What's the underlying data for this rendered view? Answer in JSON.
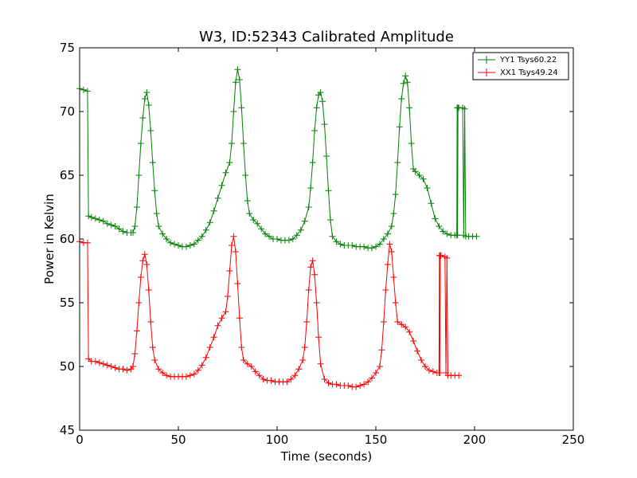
{
  "chart_data": {
    "type": "line",
    "title": "W3, ID:52343 Calibrated Amplitude",
    "xlabel": "Time (seconds)",
    "ylabel": "Power in Kelvin",
    "xlim": [
      0,
      250
    ],
    "ylim": [
      45,
      75
    ],
    "xticks": [
      0,
      50,
      100,
      150,
      200,
      250
    ],
    "yticks": [
      45,
      50,
      55,
      60,
      65,
      70,
      75
    ],
    "grid": false,
    "legend_position": "top-right",
    "marker": "+",
    "series": [
      {
        "name": "YY1 Tsys60.22",
        "color": "#008000",
        "points": [
          [
            0,
            71.8
          ],
          [
            2,
            71.7
          ],
          [
            4,
            71.6
          ],
          [
            4.5,
            61.8
          ],
          [
            6,
            61.7
          ],
          [
            8,
            61.6
          ],
          [
            10,
            61.5
          ],
          [
            12,
            61.4
          ],
          [
            14,
            61.2
          ],
          [
            16,
            61.1
          ],
          [
            18,
            61.0
          ],
          [
            20,
            60.8
          ],
          [
            22,
            60.6
          ],
          [
            24,
            60.5
          ],
          [
            26,
            60.5
          ],
          [
            27,
            60.5
          ],
          [
            28,
            61.0
          ],
          [
            29,
            62.5
          ],
          [
            30,
            65.0
          ],
          [
            31,
            67.5
          ],
          [
            32,
            69.5
          ],
          [
            33,
            71.0
          ],
          [
            34,
            71.5
          ],
          [
            35,
            70.5
          ],
          [
            36,
            68.5
          ],
          [
            37,
            66.0
          ],
          [
            38,
            63.8
          ],
          [
            39,
            62.0
          ],
          [
            40,
            61.0
          ],
          [
            42,
            60.4
          ],
          [
            44,
            60.0
          ],
          [
            46,
            59.7
          ],
          [
            48,
            59.6
          ],
          [
            50,
            59.5
          ],
          [
            52,
            59.4
          ],
          [
            54,
            59.4
          ],
          [
            56,
            59.5
          ],
          [
            58,
            59.6
          ],
          [
            60,
            59.9
          ],
          [
            62,
            60.2
          ],
          [
            64,
            60.7
          ],
          [
            66,
            61.3
          ],
          [
            68,
            62.2
          ],
          [
            70,
            63.2
          ],
          [
            72,
            64.2
          ],
          [
            74,
            65.2
          ],
          [
            76,
            66.0
          ],
          [
            77,
            67.5
          ],
          [
            78,
            70.0
          ],
          [
            79,
            72.3
          ],
          [
            80,
            73.3
          ],
          [
            81,
            72.5
          ],
          [
            82,
            70.3
          ],
          [
            83,
            67.5
          ],
          [
            84,
            65.0
          ],
          [
            85,
            63.0
          ],
          [
            86,
            62.0
          ],
          [
            88,
            61.5
          ],
          [
            90,
            61.2
          ],
          [
            92,
            60.8
          ],
          [
            94,
            60.4
          ],
          [
            96,
            60.2
          ],
          [
            98,
            60.0
          ],
          [
            100,
            60.0
          ],
          [
            102,
            59.9
          ],
          [
            104,
            59.9
          ],
          [
            106,
            59.9
          ],
          [
            108,
            60.0
          ],
          [
            110,
            60.3
          ],
          [
            112,
            60.7
          ],
          [
            114,
            61.4
          ],
          [
            116,
            62.5
          ],
          [
            117,
            64.0
          ],
          [
            118,
            66.0
          ],
          [
            119,
            68.5
          ],
          [
            120,
            70.3
          ],
          [
            121,
            71.3
          ],
          [
            122,
            71.5
          ],
          [
            123,
            70.8
          ],
          [
            124,
            69.0
          ],
          [
            125,
            66.5
          ],
          [
            126,
            63.8
          ],
          [
            127,
            61.5
          ],
          [
            128,
            60.2
          ],
          [
            130,
            59.8
          ],
          [
            132,
            59.6
          ],
          [
            134,
            59.5
          ],
          [
            136,
            59.5
          ],
          [
            138,
            59.5
          ],
          [
            140,
            59.4
          ],
          [
            142,
            59.4
          ],
          [
            144,
            59.4
          ],
          [
            146,
            59.3
          ],
          [
            148,
            59.3
          ],
          [
            150,
            59.4
          ],
          [
            152,
            59.6
          ],
          [
            154,
            60.0
          ],
          [
            156,
            60.4
          ],
          [
            158,
            61.0
          ],
          [
            159,
            62.0
          ],
          [
            160,
            63.5
          ],
          [
            161,
            66.0
          ],
          [
            162,
            68.8
          ],
          [
            163,
            71.0
          ],
          [
            164,
            72.2
          ],
          [
            165,
            72.8
          ],
          [
            166,
            72.3
          ],
          [
            167,
            70.3
          ],
          [
            168,
            67.5
          ],
          [
            169,
            65.5
          ],
          [
            170,
            65.3
          ],
          [
            172,
            65.0
          ],
          [
            174,
            64.7
          ],
          [
            176,
            64.0
          ],
          [
            178,
            62.8
          ],
          [
            180,
            61.6
          ],
          [
            182,
            61.0
          ],
          [
            184,
            60.6
          ],
          [
            186,
            60.4
          ],
          [
            188,
            60.3
          ],
          [
            190,
            60.3
          ],
          [
            191,
            60.3
          ],
          [
            191.2,
            70.3
          ],
          [
            191.4,
            60.3
          ],
          [
            191.6,
            70.3
          ],
          [
            192,
            70.3
          ],
          [
            194,
            70.3
          ],
          [
            194.5,
            60.3
          ],
          [
            195,
            70.2
          ],
          [
            195.5,
            60.2
          ],
          [
            197,
            60.2
          ],
          [
            199,
            60.2
          ],
          [
            201,
            60.2
          ]
        ]
      },
      {
        "name": "XX1 Tsys49.24",
        "color": "#ff0000",
        "points": [
          [
            0,
            59.8
          ],
          [
            2,
            59.7
          ],
          [
            4,
            59.7
          ],
          [
            4.5,
            50.6
          ],
          [
            6,
            50.4
          ],
          [
            8,
            50.4
          ],
          [
            10,
            50.3
          ],
          [
            12,
            50.2
          ],
          [
            14,
            50.1
          ],
          [
            16,
            50.0
          ],
          [
            18,
            49.9
          ],
          [
            20,
            49.8
          ],
          [
            22,
            49.8
          ],
          [
            24,
            49.7
          ],
          [
            26,
            49.8
          ],
          [
            27,
            50.0
          ],
          [
            28,
            51.0
          ],
          [
            29,
            52.8
          ],
          [
            30,
            55.0
          ],
          [
            31,
            57.0
          ],
          [
            32,
            58.3
          ],
          [
            33,
            58.8
          ],
          [
            34,
            58.0
          ],
          [
            35,
            56.0
          ],
          [
            36,
            53.5
          ],
          [
            37,
            51.5
          ],
          [
            38,
            50.5
          ],
          [
            40,
            49.8
          ],
          [
            42,
            49.5
          ],
          [
            44,
            49.3
          ],
          [
            46,
            49.2
          ],
          [
            48,
            49.2
          ],
          [
            50,
            49.2
          ],
          [
            52,
            49.2
          ],
          [
            54,
            49.2
          ],
          [
            56,
            49.3
          ],
          [
            58,
            49.4
          ],
          [
            60,
            49.7
          ],
          [
            62,
            50.1
          ],
          [
            64,
            50.7
          ],
          [
            66,
            51.5
          ],
          [
            68,
            52.3
          ],
          [
            70,
            53.2
          ],
          [
            72,
            53.8
          ],
          [
            74,
            54.3
          ],
          [
            75,
            55.5
          ],
          [
            76,
            57.5
          ],
          [
            77,
            59.5
          ],
          [
            78,
            60.2
          ],
          [
            79,
            59.0
          ],
          [
            80,
            56.5
          ],
          [
            81,
            53.8
          ],
          [
            82,
            51.5
          ],
          [
            83,
            50.5
          ],
          [
            85,
            50.2
          ],
          [
            87,
            50.0
          ],
          [
            89,
            49.6
          ],
          [
            91,
            49.3
          ],
          [
            93,
            49.0
          ],
          [
            95,
            48.9
          ],
          [
            97,
            48.9
          ],
          [
            99,
            48.8
          ],
          [
            101,
            48.8
          ],
          [
            103,
            48.8
          ],
          [
            105,
            48.8
          ],
          [
            107,
            49.0
          ],
          [
            109,
            49.3
          ],
          [
            111,
            49.8
          ],
          [
            113,
            50.5
          ],
          [
            114,
            51.5
          ],
          [
            115,
            53.5
          ],
          [
            116,
            56.0
          ],
          [
            117,
            57.8
          ],
          [
            118,
            58.3
          ],
          [
            119,
            57.2
          ],
          [
            120,
            55.0
          ],
          [
            121,
            52.3
          ],
          [
            122,
            50.2
          ],
          [
            124,
            49.0
          ],
          [
            126,
            48.7
          ],
          [
            128,
            48.6
          ],
          [
            130,
            48.6
          ],
          [
            132,
            48.5
          ],
          [
            134,
            48.5
          ],
          [
            136,
            48.5
          ],
          [
            138,
            48.4
          ],
          [
            140,
            48.4
          ],
          [
            142,
            48.5
          ],
          [
            144,
            48.6
          ],
          [
            146,
            48.8
          ],
          [
            148,
            49.1
          ],
          [
            150,
            49.5
          ],
          [
            152,
            50.0
          ],
          [
            153,
            51.3
          ],
          [
            154,
            53.5
          ],
          [
            155,
            56.0
          ],
          [
            156,
            58.0
          ],
          [
            157,
            59.6
          ],
          [
            158,
            59.0
          ],
          [
            159,
            57.0
          ],
          [
            160,
            55.0
          ],
          [
            161,
            53.5
          ],
          [
            163,
            53.3
          ],
          [
            165,
            53.1
          ],
          [
            167,
            52.7
          ],
          [
            169,
            52.0
          ],
          [
            171,
            51.2
          ],
          [
            173,
            50.5
          ],
          [
            175,
            50.0
          ],
          [
            177,
            49.7
          ],
          [
            179,
            49.6
          ],
          [
            181,
            49.5
          ],
          [
            182,
            49.5
          ],
          [
            182.2,
            58.7
          ],
          [
            182.4,
            49.5
          ],
          [
            182.6,
            58.7
          ],
          [
            183,
            58.7
          ],
          [
            185,
            58.6
          ],
          [
            185.5,
            49.5
          ],
          [
            186,
            58.5
          ],
          [
            186.5,
            49.3
          ],
          [
            188,
            49.3
          ],
          [
            190,
            49.3
          ],
          [
            192,
            49.3
          ]
        ]
      }
    ]
  }
}
